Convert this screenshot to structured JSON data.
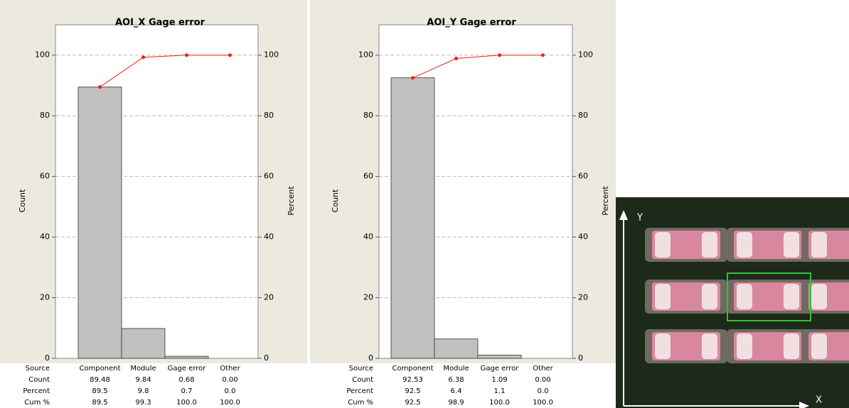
{
  "chart_data": [
    {
      "type": "pareto",
      "title": "AOI_X Gage error",
      "y_label": "Count",
      "y2_label": "Percent",
      "categories": [
        "Component",
        "Module",
        "Gage error",
        "Other"
      ],
      "values": [
        89.48,
        9.84,
        0.68,
        0
      ],
      "value_labels": [
        "89.48",
        "9.84",
        "0.68",
        "0.00"
      ],
      "percent": [
        89.5,
        9.8,
        0.7,
        0
      ],
      "percent_labels": [
        "89.5",
        "9.8",
        "0.7",
        "0.0"
      ],
      "cumulative": [
        89.5,
        99.3,
        100,
        100
      ],
      "cumulative_labels": [
        "89.5",
        "99.3",
        "100.0",
        "100.0"
      ],
      "row_headers": [
        "Source",
        "Count",
        "Percent",
        "Cum %"
      ],
      "bar_color": "#c0c0c0",
      "line_color": "#e8201c",
      "ylim": [
        0,
        110
      ],
      "yticks": [
        0,
        20,
        40,
        60,
        80,
        100
      ],
      "y2lim": [
        0,
        110
      ],
      "y2ticks": [
        0,
        20,
        40,
        60,
        80,
        100
      ],
      "grid": true
    },
    {
      "type": "pareto",
      "title": "AOI_Y Gage error",
      "y_label": "Count",
      "y2_label": "Percent",
      "categories": [
        "Component",
        "Module",
        "Gage error",
        "Other"
      ],
      "values": [
        92.53,
        6.38,
        1.09,
        0
      ],
      "value_labels": [
        "92.53",
        "6.38",
        "1.09",
        "0.00"
      ],
      "percent": [
        92.5,
        6.4,
        1.1,
        0
      ],
      "percent_labels": [
        "92.5",
        "6.4",
        "1.1",
        "0.0"
      ],
      "cumulative": [
        92.5,
        98.9,
        100,
        100
      ],
      "cumulative_labels": [
        "92.5",
        "98.9",
        "100.0",
        "100.0"
      ],
      "row_headers": [
        "Source",
        "Count",
        "Percent",
        "Cum %"
      ],
      "bar_color": "#c0c0c0",
      "line_color": "#e8201c",
      "ylim": [
        0,
        110
      ],
      "yticks": [
        0,
        20,
        40,
        60,
        80,
        100
      ],
      "y2lim": [
        0,
        110
      ],
      "y2ticks": [
        0,
        20,
        40,
        60,
        80,
        100
      ],
      "grid": true
    }
  ],
  "photo": {
    "y_label": "Y",
    "x_label": "X"
  }
}
